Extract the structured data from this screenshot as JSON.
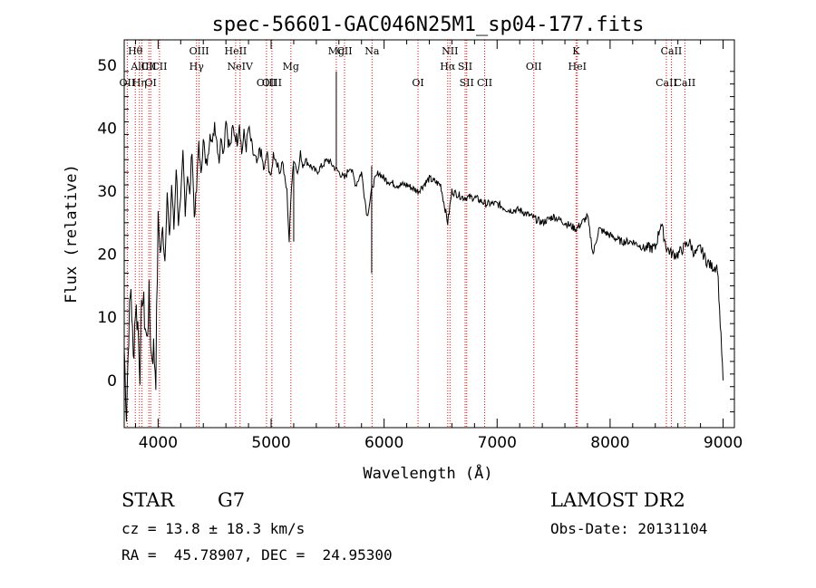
{
  "chart_data": {
    "type": "line",
    "title": "spec-56601-GAC046N25M1_sp04-177.fits",
    "xlabel": "Wavelength (Å)",
    "ylabel": "Flux (relative)",
    "xlim": [
      3700,
      9100
    ],
    "ylim": [
      -7.5,
      54
    ],
    "xticks": [
      4000,
      5000,
      6000,
      7000,
      8000,
      9000
    ],
    "yticks": [
      0,
      10,
      20,
      30,
      40,
      50
    ],
    "grid": false,
    "legend": "none",
    "line_color": "#000000",
    "marker_color": "#ff0000",
    "series": [
      {
        "x": [
          3700,
          3720,
          3740,
          3760,
          3780,
          3800,
          3820,
          3840,
          3860,
          3880,
          3900,
          3920,
          3940,
          3960,
          3980,
          4000,
          4020,
          4040,
          4060,
          4080,
          4100,
          4120,
          4140,
          4160,
          4180,
          4200,
          4220,
          4240,
          4260,
          4280,
          4300,
          4320,
          4340,
          4360,
          4380,
          4400,
          4420,
          4440,
          4460,
          4480,
          4500,
          4520,
          4540,
          4560,
          4580,
          4600,
          4620,
          4640,
          4660,
          4680,
          4700,
          4720,
          4740,
          4760,
          4780,
          4800,
          4820,
          4840,
          4860,
          4880,
          4900,
          4920,
          4940,
          4960,
          4980,
          5000,
          5020,
          5040,
          5060,
          5080,
          5100,
          5120,
          5140,
          5160,
          5180,
          5200,
          5220,
          5240,
          5260,
          5280,
          5300,
          5350,
          5400,
          5450,
          5500,
          5550,
          5600,
          5650,
          5700,
          5750,
          5800,
          5850,
          5900,
          5950,
          6000,
          6100,
          6200,
          6300,
          6400,
          6500,
          6563,
          6600,
          6700,
          6800,
          6900,
          7000,
          7100,
          7200,
          7300,
          7400,
          7500,
          7600,
          7700,
          7800,
          7850,
          7900,
          8000,
          8100,
          8200,
          8300,
          8400,
          8450,
          8500,
          8550,
          8600,
          8650,
          8700,
          8750,
          8800,
          8850,
          8900,
          8950,
          9000
        ],
        "y": [
          5,
          -5,
          8,
          15,
          3,
          12,
          9,
          2,
          14,
          10,
          6,
          13,
          4,
          5,
          1,
          26,
          20,
          24,
          19,
          30,
          22,
          31,
          24,
          34,
          25,
          28,
          36,
          27,
          33,
          29,
          37,
          26,
          30,
          38,
          32,
          39,
          34,
          35,
          40,
          37,
          41,
          38,
          35,
          39,
          36,
          42,
          38,
          37,
          40,
          39,
          38,
          41,
          36,
          39,
          37,
          40,
          38,
          36,
          35,
          34,
          37,
          35,
          33,
          36,
          34,
          32,
          36,
          35,
          34,
          33,
          35,
          32,
          30,
          22,
          31,
          35,
          34,
          33,
          36,
          34,
          35,
          34,
          33,
          34,
          35,
          34,
          33,
          32,
          34,
          31,
          33,
          26,
          31,
          33,
          32,
          31,
          31,
          30,
          32,
          31,
          25,
          30,
          29,
          29,
          28,
          28,
          27,
          27,
          26,
          25,
          26,
          25,
          24,
          26,
          20,
          24,
          23,
          22,
          22,
          21,
          21,
          25,
          21,
          20,
          20,
          21,
          22,
          20,
          21,
          19,
          18,
          18,
          0
        ],
        "spikes": [
          {
            "x": 5577,
            "y": 49
          },
          {
            "x": 5890,
            "y": 17
          },
          {
            "x": 5200,
            "y": 22
          }
        ]
      }
    ],
    "lines": [
      {
        "label": "Hθ",
        "x": 3798,
        "row": 1
      },
      {
        "label": "AlIII",
        "x": 3857,
        "row": 2
      },
      {
        "label": "OII",
        "x": 3727,
        "row": 3
      },
      {
        "label": "Hη",
        "x": 3835,
        "row": 3
      },
      {
        "label": "CII",
        "x": 3918,
        "row": 2
      },
      {
        "label": "OI",
        "x": 3934,
        "row": 3
      },
      {
        "label": "CII",
        "x": 4012,
        "row": 2
      },
      {
        "label": "OIII",
        "x": 4363,
        "row": 1
      },
      {
        "label": "Hγ",
        "x": 4340,
        "row": 2
      },
      {
        "label": "HeII",
        "x": 4686,
        "row": 1
      },
      {
        "label": "NeIV",
        "x": 4725,
        "row": 2
      },
      {
        "label": "OIII",
        "x": 4959,
        "row": 3
      },
      {
        "label": "OIII",
        "x": 5007,
        "row": 3
      },
      {
        "label": "Mg",
        "x": 5175,
        "row": 2
      },
      {
        "label": "Mg",
        "x": 5577,
        "row": 1
      },
      {
        "label": "CII",
        "x": 5650,
        "row": 1
      },
      {
        "label": "Na",
        "x": 5893,
        "row": 1
      },
      {
        "label": "OI",
        "x": 6300,
        "row": 3
      },
      {
        "label": "NII",
        "x": 6583,
        "row": 1
      },
      {
        "label": "Hα",
        "x": 6563,
        "row": 2
      },
      {
        "label": "SII",
        "x": 6717,
        "row": 2
      },
      {
        "label": "SII",
        "x": 6731,
        "row": 3
      },
      {
        "label": "CII",
        "x": 6890,
        "row": 3
      },
      {
        "label": "OII",
        "x": 7325,
        "row": 2
      },
      {
        "label": "K",
        "x": 7699,
        "row": 1
      },
      {
        "label": "HeI",
        "x": 7710,
        "row": 2
      },
      {
        "label": "CaII",
        "x": 8542,
        "row": 1
      },
      {
        "label": "CaII",
        "x": 8498,
        "row": 3
      },
      {
        "label": "CaII",
        "x": 8662,
        "row": 3
      }
    ],
    "line_markers": [
      3727,
      3798,
      3835,
      3857,
      3918,
      3934,
      4012,
      4340,
      4363,
      4686,
      4725,
      4959,
      5007,
      5175,
      5577,
      5650,
      5893,
      6300,
      6563,
      6583,
      6717,
      6731,
      6890,
      7325,
      7699,
      7710,
      8498,
      8542,
      8662
    ]
  },
  "info": {
    "obj_class": "STAR",
    "subclass": "G7",
    "survey": "LAMOST DR2",
    "cz": "cz = 13.8 ± 18.3 km/s",
    "obs_date": "Obs-Date: 20131104",
    "radec": "RA =  45.78907, DEC =  24.95300"
  }
}
